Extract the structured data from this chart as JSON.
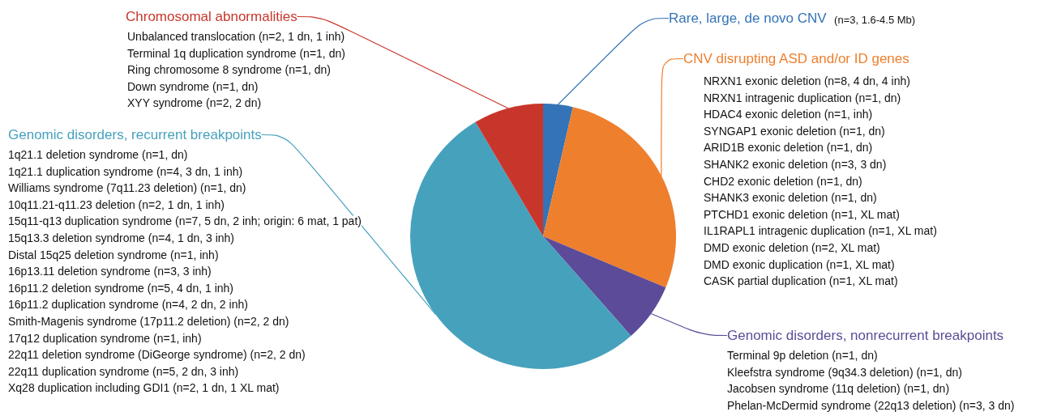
{
  "chart_data": {
    "type": "pie",
    "categories": [
      "Rare, large, de novo CNV",
      "CNV disrupting ASD and/or ID genes",
      "Genomic disorders, nonrecurrent breakpoints",
      "Genomic disorders, recurrent breakpoints",
      "Chromosomal abnormalities"
    ],
    "values": [
      3.6,
      27.7,
      7.2,
      53.0,
      8.5
    ],
    "colors": [
      "#3473b7",
      "#ee7f2d",
      "#5c4b98",
      "#46a1bd",
      "#c8362b"
    ],
    "annotations": [
      "(n=3, 1.6-4.5 Mb)",
      "NRXN1 exonic deletion (n=8, 4 dn, 4 inh)",
      "NRXN1 intragenic duplication (n=1, dn)",
      "HDAC4 exonic deletion (n=1, inh)",
      "SYNGAP1 exonic deletion (n=1, dn)",
      "ARID1B exonic deletion (n=1, dn)",
      "SHANK2 exonic deletion (n=3, 3 dn)",
      "CHD2 exonic deletion (n=1, dn)",
      "SHANK3 exonic deletion (n=1, dn)",
      "PTCHD1 exonic deletion (n=1, XL mat)",
      "IL1RAPL1 intragenic duplication (n=1, XL mat)",
      "DMD exonic deletion (n=2, XL mat)",
      "DMD exonic duplication (n=1, XL mat)",
      "CASK partial duplication (n=1, XL mat)",
      "Terminal 9p deletion (n=1, dn)",
      "Kleefstra syndrome (9q34.3 deletion) (n=1, dn)",
      "Jacobsen syndrome (11q deletion) (n=1, dn)",
      "Phelan-McDermid syndrome (22q13 deletion) (n=3, 3 dn)",
      "1q21.1 deletion syndrome (n=1, dn)",
      "1q21.1 duplication syndrome (n=4, 3 dn, 1 inh)",
      "Williams syndrome (7q11.23 deletion) (n=1, dn)",
      "10q11.21-q11.23 deletion (n=2, 1 dn, 1 inh)",
      "15q11-q13 duplication syndrome (n=7, 5 dn, 2 inh; origin: 6 mat, 1 pat)",
      "15q13.3 deletion syndrome (n=4, 1 dn, 3 inh)",
      "Distal 15q25 deletion syndrome (n=1, inh)",
      "16p13.11 deletion syndrome (n=3, 3 inh)",
      "16p11.2 deletion syndrome (n=5, 4 dn, 1 inh)",
      "16p11.2 duplication syndrome (n=4, 2 dn, 2 inh)",
      "Smith-Magenis syndrome (17p11.2 deletion) (n=2, 2 dn)",
      "17q12 duplication syndrome (n=1, inh)",
      "22q11 deletion syndrome (DiGeorge syndrome) (n=2, 2 dn)",
      "22q11 duplication syndrome (n=5, 2 dn, 3 inh)",
      "Xq28 duplication including GDI1 (n=2, 1 dn, 1 XL mat)",
      "Unbalanced translocation (n=2, 1 dn, 1 inh)",
      "Terminal 1q duplication syndrome (n=1, dn)",
      "Ring chromosome 8 syndrome (n=1, dn)",
      "Down syndrome (n=1, dn)",
      "XYY syndrome (n=2, 2 dn)"
    ]
  }
}
